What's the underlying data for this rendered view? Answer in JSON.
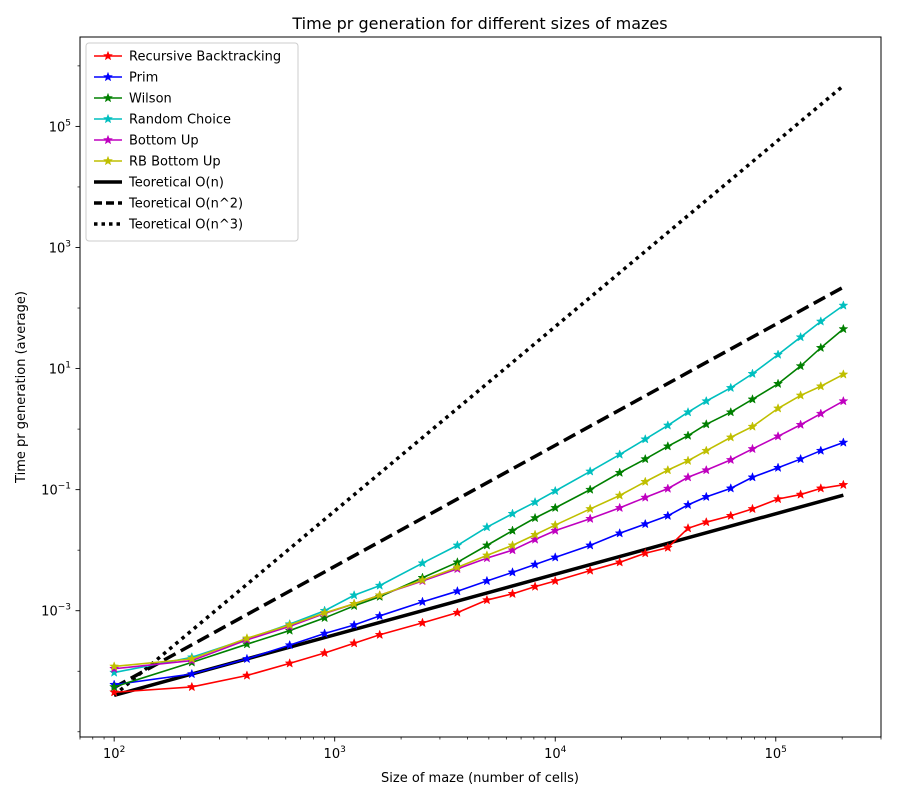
{
  "chart_data": {
    "type": "line",
    "title": "Time pr generation for different sizes of mazes",
    "xlabel": "Size of maze (number of cells)",
    "ylabel": "Time pr generation (average)",
    "xscale": "log",
    "yscale": "log",
    "xlim": [
      70,
      300000
    ],
    "ylim": [
      8.2e-06,
      3000000
    ],
    "x_ticks": [
      100,
      1000,
      10000,
      100000
    ],
    "x_tick_labels": [
      {
        "base": "10",
        "exp": "2"
      },
      {
        "base": "10",
        "exp": "3"
      },
      {
        "base": "10",
        "exp": "4"
      },
      {
        "base": "10",
        "exp": "5"
      }
    ],
    "y_ticks": [
      0.001,
      0.1,
      10,
      1000,
      100000
    ],
    "y_tick_labels": [
      {
        "base": "10",
        "exp": "−3"
      },
      {
        "base": "10",
        "exp": "−1"
      },
      {
        "base": "10",
        "exp": "1"
      },
      {
        "base": "10",
        "exp": "3"
      },
      {
        "base": "10",
        "exp": "5"
      }
    ],
    "grid": false,
    "legend_position": "top-left",
    "x": [
      100,
      225,
      400,
      625,
      900,
      1225,
      1600,
      2500,
      3600,
      4900,
      6400,
      8100,
      10000,
      14400,
      19600,
      25600,
      32400,
      40000,
      48400,
      62500,
      78400,
      102400,
      129600,
      160000,
      202500
    ],
    "series": [
      {
        "name": "Recursive Backtracking",
        "color": "#ff0000",
        "style": "line-marker",
        "values": [
          4.5e-05,
          5.5e-05,
          8.5e-05,
          0.000135,
          0.0002,
          0.00029,
          0.0004,
          0.00063,
          0.00093,
          0.0015,
          0.0019,
          0.0025,
          0.0031,
          0.0046,
          0.0063,
          0.0089,
          0.011,
          0.023,
          0.029,
          0.037,
          0.048,
          0.07,
          0.083,
          0.105,
          0.12
        ]
      },
      {
        "name": "Prim",
        "color": "#0000ff",
        "style": "line-marker",
        "values": [
          6e-05,
          9e-05,
          0.00016,
          0.00027,
          0.00042,
          0.00058,
          0.00082,
          0.0014,
          0.0021,
          0.0031,
          0.0043,
          0.0058,
          0.0076,
          0.012,
          0.019,
          0.027,
          0.037,
          0.056,
          0.076,
          0.105,
          0.16,
          0.23,
          0.32,
          0.44,
          0.6
        ]
      },
      {
        "name": "Wilson",
        "color": "#008000",
        "style": "line-marker",
        "values": [
          5.5e-05,
          0.00014,
          0.00028,
          0.00047,
          0.00076,
          0.0012,
          0.0017,
          0.0035,
          0.0063,
          0.012,
          0.021,
          0.034,
          0.05,
          0.1,
          0.19,
          0.32,
          0.52,
          0.78,
          1.2,
          1.9,
          3.1,
          5.6,
          11,
          22,
          45
        ]
      },
      {
        "name": "Random Choice",
        "color": "#00bfbf",
        "style": "line-marker",
        "values": [
          9.5e-05,
          0.00017,
          0.00034,
          0.0006,
          0.001,
          0.0018,
          0.0026,
          0.0061,
          0.012,
          0.024,
          0.04,
          0.062,
          0.095,
          0.2,
          0.38,
          0.68,
          1.15,
          1.9,
          2.9,
          4.8,
          8.2,
          17,
          33,
          60,
          110
        ]
      },
      {
        "name": "Bottom Up",
        "color": "#bf00bf",
        "style": "line-marker",
        "values": [
          0.00011,
          0.00015,
          0.00033,
          0.00055,
          0.0009,
          0.0013,
          0.0018,
          0.0031,
          0.0049,
          0.0074,
          0.01,
          0.015,
          0.021,
          0.033,
          0.05,
          0.074,
          0.104,
          0.16,
          0.21,
          0.31,
          0.47,
          0.76,
          1.18,
          1.8,
          2.9
        ]
      },
      {
        "name": "RB Bottom Up",
        "color": "#bfbf00",
        "style": "line-marker",
        "values": [
          0.00012,
          0.00016,
          0.00035,
          0.00058,
          0.00092,
          0.0013,
          0.0018,
          0.0032,
          0.0052,
          0.0082,
          0.012,
          0.018,
          0.026,
          0.048,
          0.08,
          0.135,
          0.21,
          0.3,
          0.44,
          0.73,
          1.1,
          2.2,
          3.6,
          5.1,
          8
        ]
      }
    ],
    "reference_lines": [
      {
        "name": "Teoretical O(n)",
        "color": "#000000",
        "style": "solid",
        "x": [
          100,
          202500
        ],
        "values": [
          4e-05,
          0.081
        ]
      },
      {
        "name": "Teoretical O(n^2)",
        "color": "#000000",
        "style": "dashed",
        "x": [
          100,
          202500
        ],
        "values": [
          5.4e-05,
          221
        ]
      },
      {
        "name": "Teoretical O(n^3)",
        "color": "#000000",
        "style": "dotted",
        "x": [
          100,
          202500
        ],
        "values": [
          4e-05,
          470000
        ]
      }
    ]
  }
}
